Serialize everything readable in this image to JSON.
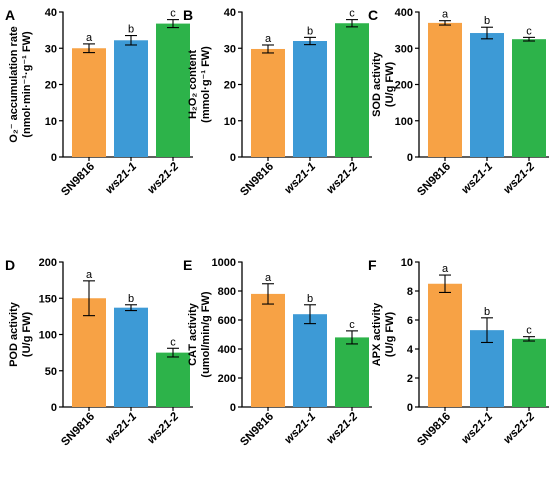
{
  "chart_data": [
    {
      "type": "bar",
      "panel": "A",
      "ylabel": "O₂⁻ accumulation rate (nmol·min⁻¹·g⁻¹ FW)",
      "categories": [
        "SN9816",
        "ws21-1",
        "ws21-2"
      ],
      "values": [
        30,
        32.2,
        36.8
      ],
      "errors": [
        1.2,
        1.3,
        1.1
      ],
      "significance": [
        "a",
        "b",
        "c"
      ],
      "colors": [
        "#F7A245",
        "#3D9AD6",
        "#2DB34A"
      ],
      "ylim": [
        0,
        40
      ],
      "yticks": [
        "0",
        "10",
        "20",
        "30",
        "40"
      ]
    },
    {
      "type": "bar",
      "panel": "B",
      "ylabel": "H₂O₂ content (mmol·g⁻¹ FW)",
      "categories": [
        "SN9816",
        "ws21-1",
        "ws21-2"
      ],
      "values": [
        29.8,
        32,
        36.9
      ],
      "errors": [
        1.1,
        1.0,
        1.0
      ],
      "significance": [
        "a",
        "b",
        "c"
      ],
      "colors": [
        "#F7A245",
        "#3D9AD6",
        "#2DB34A"
      ],
      "ylim": [
        0,
        40
      ],
      "yticks": [
        "0",
        "10",
        "20",
        "30",
        "40"
      ]
    },
    {
      "type": "bar",
      "panel": "C",
      "ylabel": "SOD activity (U/g FW)",
      "categories": [
        "SN9816",
        "ws21-1",
        "ws21-2"
      ],
      "values": [
        370,
        342,
        325
      ],
      "errors": [
        6,
        16,
        5
      ],
      "significance": [
        "a",
        "b",
        "c"
      ],
      "colors": [
        "#F7A245",
        "#3D9AD6",
        "#2DB34A"
      ],
      "ylim": [
        0,
        400
      ],
      "yticks": [
        "0",
        "100",
        "200",
        "300",
        "400"
      ]
    },
    {
      "type": "bar",
      "panel": "D",
      "ylabel": "POD activity (U/g FW)",
      "categories": [
        "SN9816",
        "ws21-1",
        "ws21-2"
      ],
      "values": [
        150,
        137,
        75
      ],
      "errors": [
        24,
        4,
        6
      ],
      "significance": [
        "a",
        "b",
        "c"
      ],
      "colors": [
        "#F7A245",
        "#3D9AD6",
        "#2DB34A"
      ],
      "ylim": [
        0,
        200
      ],
      "yticks": [
        "0",
        "50",
        "100",
        "150",
        "200"
      ]
    },
    {
      "type": "bar",
      "panel": "E",
      "ylabel": "CAT activity (umol/min/g FW)",
      "categories": [
        "SN9816",
        "ws21-1",
        "ws21-2"
      ],
      "values": [
        780,
        640,
        480
      ],
      "errors": [
        70,
        65,
        45
      ],
      "significance": [
        "a",
        "b",
        "c"
      ],
      "colors": [
        "#F7A245",
        "#3D9AD6",
        "#2DB34A"
      ],
      "ylim": [
        0,
        1000
      ],
      "yticks": [
        "0",
        "200",
        "400",
        "600",
        "800",
        "1000"
      ]
    },
    {
      "type": "bar",
      "panel": "F",
      "ylabel": "APX activity (U/g FW)",
      "categories": [
        "SN9816",
        "ws21-1",
        "ws21-2"
      ],
      "values": [
        8.5,
        5.3,
        4.7
      ],
      "errors": [
        0.6,
        0.85,
        0.15
      ],
      "significance": [
        "a",
        "b",
        "c"
      ],
      "colors": [
        "#F7A245",
        "#3D9AD6",
        "#2DB34A"
      ],
      "ylim": [
        0,
        10
      ],
      "yticks": [
        "0",
        "2",
        "4",
        "6",
        "8",
        "10"
      ]
    }
  ]
}
